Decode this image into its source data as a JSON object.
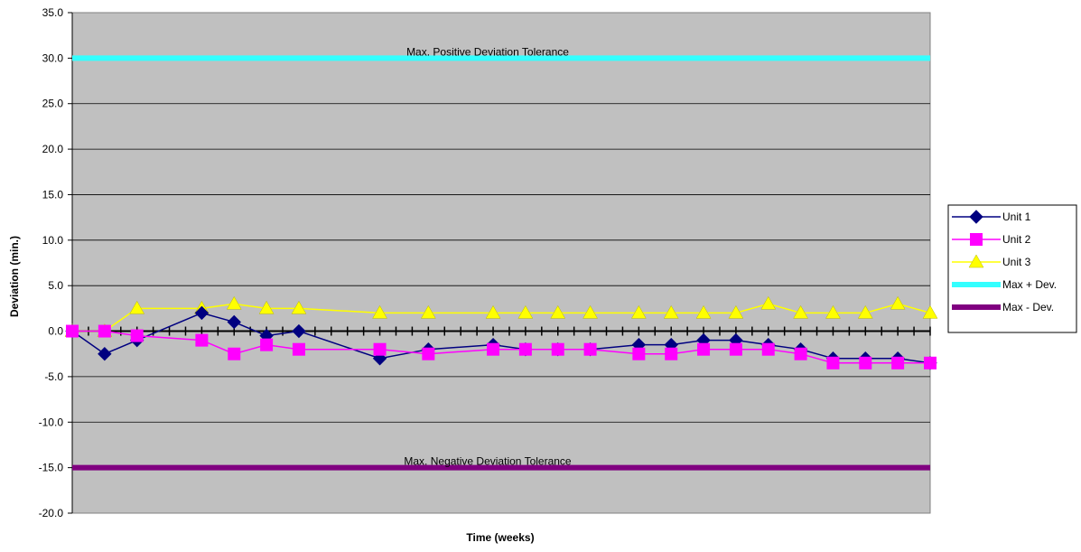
{
  "chart_data": {
    "type": "line",
    "title": "",
    "xlabel": "Time (weeks)",
    "ylabel": "Deviation (min.)",
    "ylim": [
      -20,
      35
    ],
    "yticks": [
      -20,
      -15,
      -10,
      -5,
      0,
      5,
      10,
      15,
      20,
      25,
      30,
      35
    ],
    "ytick_labels": [
      "-20.0",
      "-15.0",
      "-10.0",
      "-5.0",
      "0.0",
      "5.0",
      "10.0",
      "15.0",
      "20.0",
      "25.0",
      "30.0",
      "35.0"
    ],
    "xlim": [
      0,
      53
    ],
    "x_tick_count": 53,
    "grid": "horizontal",
    "legend_position": "right",
    "plot_background": "#c0c0c0",
    "series": [
      {
        "name": "Unit 1",
        "color": "#000080",
        "marker": "diamond",
        "x": [
          0,
          2,
          4,
          8,
          10,
          12,
          14,
          19,
          22,
          26,
          28,
          30,
          32,
          35,
          37,
          39,
          41,
          43,
          45,
          47,
          49,
          51,
          53
        ],
        "y": [
          0,
          -2.5,
          -1,
          2,
          1,
          -0.5,
          0,
          -3,
          -2,
          -1.5,
          -2,
          -2,
          -2,
          -1.5,
          -1.5,
          -1,
          -1,
          -1.5,
          -2,
          -3,
          -3,
          -3,
          -3.5
        ]
      },
      {
        "name": "Unit 2",
        "color": "#ff00ff",
        "marker": "square",
        "x": [
          0,
          2,
          4,
          8,
          10,
          12,
          14,
          19,
          22,
          26,
          28,
          30,
          32,
          35,
          37,
          39,
          41,
          43,
          45,
          47,
          49,
          51,
          53
        ],
        "y": [
          0,
          0,
          -0.5,
          -1,
          -2.5,
          -1.5,
          -2,
          -2,
          -2.5,
          -2,
          -2,
          -2,
          -2,
          -2.5,
          -2.5,
          -2,
          -2,
          -2,
          -2.5,
          -3.5,
          -3.5,
          -3.5,
          -3.5
        ]
      },
      {
        "name": "Unit 3",
        "color": "#ffff00",
        "marker": "triangle",
        "x": [
          0,
          2,
          4,
          8,
          10,
          12,
          14,
          19,
          22,
          26,
          28,
          30,
          32,
          35,
          37,
          39,
          41,
          43,
          45,
          47,
          49,
          51,
          53
        ],
        "y": [
          0,
          0,
          2.5,
          2.5,
          3,
          2.5,
          2.5,
          2,
          2,
          2,
          2,
          2,
          2,
          2,
          2,
          2,
          2,
          3,
          2,
          2,
          2,
          3,
          2
        ]
      },
      {
        "name": "Max + Dev.",
        "color": "#33ffff",
        "marker": "none",
        "constant": 30,
        "annotation": "Max. Positive Deviation Tolerance"
      },
      {
        "name": "Max - Dev.",
        "color": "#800080",
        "marker": "none",
        "constant": -15,
        "annotation": "Max. Negative Deviation Tolerance"
      }
    ]
  }
}
